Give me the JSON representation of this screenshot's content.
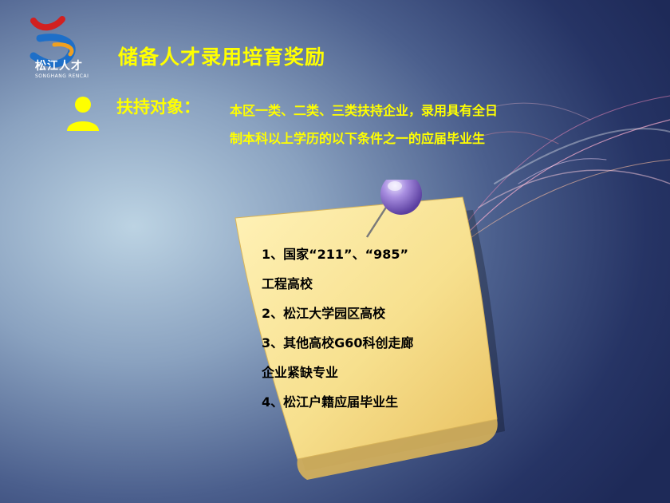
{
  "logo": {
    "text": "松江人才",
    "subtext": "SONGHANG RENCAI"
  },
  "title": "储备人才录用培育奖励",
  "support": {
    "label": "扶持对象：",
    "line1": "本区一类、二类、三类扶持企业，录用具有全日",
    "line2": "制本科以上学历的以下条件之一的应届毕业生"
  },
  "note": {
    "items": [
      "1、国家“211”、“985”",
      "工程高校",
      "2、松江大学园区高校",
      "3、其他高校G60科创走廊",
      "企业紧缺专业",
      "4、松江户籍应届毕业生"
    ]
  },
  "colors": {
    "accent": "#ffff00",
    "note": "#fbe8a0",
    "pin": "#9b7fd6"
  }
}
